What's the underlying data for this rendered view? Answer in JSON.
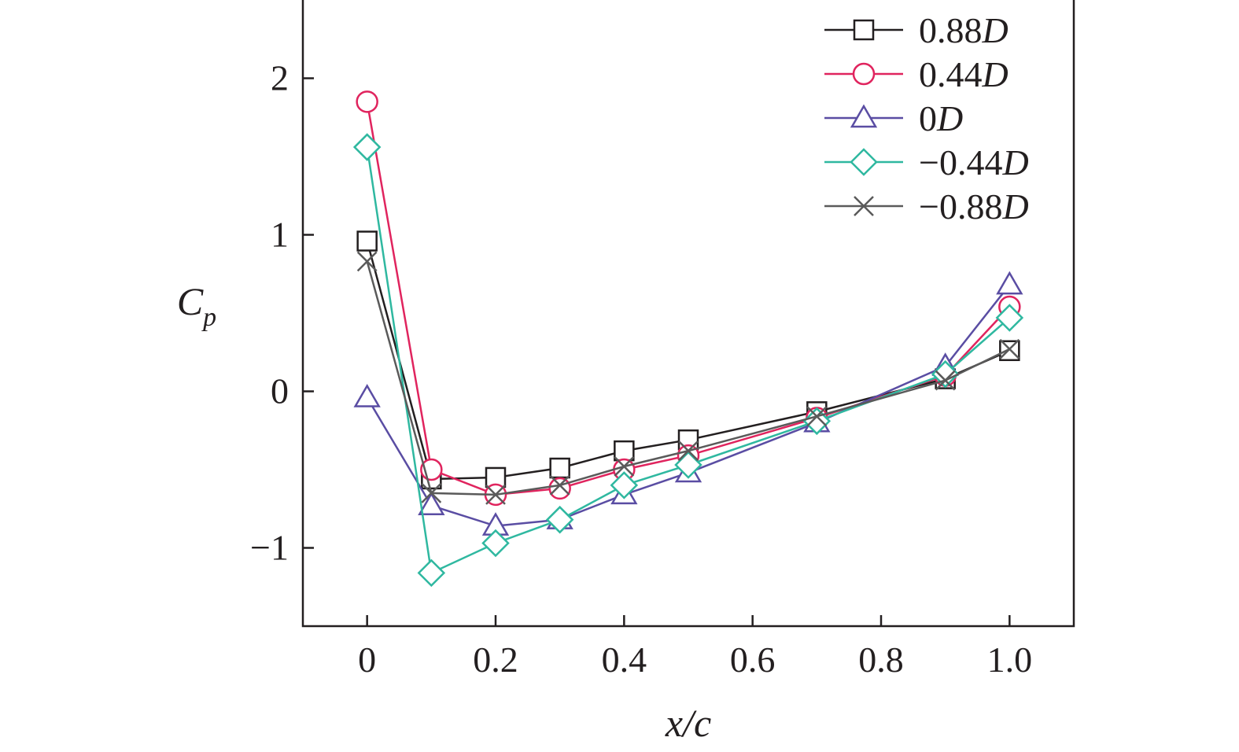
{
  "chart_data": {
    "type": "line",
    "xlabel": "x/c",
    "ylabel": "C",
    "ylabel_sub": "p",
    "xlim": [
      -0.1,
      1.1
    ],
    "ylim": [
      -1.5,
      2.5
    ],
    "x_ticks": [
      0,
      0.2,
      0.4,
      0.6,
      0.8,
      1.0
    ],
    "x_tick_labels": [
      "0",
      "0.2",
      "0.4",
      "0.6",
      "0.8",
      "1.0"
    ],
    "y_ticks": [
      -1,
      0,
      1,
      2
    ],
    "y_tick_labels": [
      "−1",
      "0",
      "1",
      "2"
    ],
    "grid": false,
    "legend_position": "top-right",
    "x": [
      0,
      0.1,
      0.2,
      0.3,
      0.4,
      0.5,
      0.7,
      0.9,
      1.0
    ],
    "series": [
      {
        "name": "0.88",
        "name_suffix": "D",
        "color": "#231f20",
        "marker": "square",
        "values": [
          0.96,
          -0.56,
          -0.55,
          -0.49,
          -0.38,
          -0.31,
          -0.13,
          0.08,
          0.26
        ]
      },
      {
        "name": "0.44",
        "name_suffix": "D",
        "color": "#e0245e",
        "marker": "circle",
        "values": [
          1.85,
          -0.5,
          -0.66,
          -0.62,
          -0.5,
          -0.41,
          -0.17,
          0.1,
          0.54
        ]
      },
      {
        "name": "0",
        "name_suffix": "D",
        "color": "#5a4da3",
        "marker": "triangle",
        "values": [
          -0.04,
          -0.73,
          -0.86,
          -0.82,
          -0.66,
          -0.52,
          -0.2,
          0.16,
          0.68
        ]
      },
      {
        "name": "−0.44",
        "name_suffix": "D",
        "color": "#2fb8a0",
        "marker": "diamond",
        "values": [
          1.56,
          -1.16,
          -0.97,
          -0.82,
          -0.6,
          -0.47,
          -0.19,
          0.11,
          0.47
        ]
      },
      {
        "name": "−0.88",
        "name_suffix": "D",
        "color": "#5a5a5a",
        "marker": "x",
        "values": [
          0.83,
          -0.65,
          -0.66,
          -0.6,
          -0.48,
          -0.38,
          -0.16,
          0.07,
          0.27
        ]
      }
    ]
  }
}
